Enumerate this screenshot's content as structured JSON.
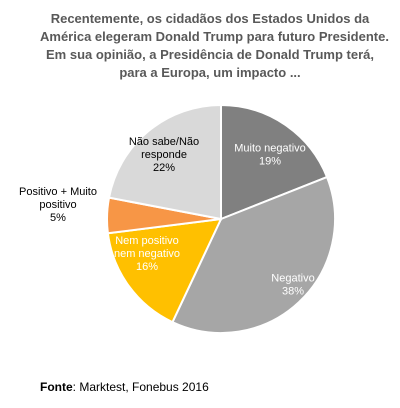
{
  "chart_data": {
    "type": "pie",
    "title_lines": [
      "Recentemente, os cidadãos dos Estados Unidos da",
      "América elegeram Donald Trump para futuro Presidente.",
      "Em sua opinião, a Presidência de Donald Trump terá,",
      "para a Europa, um impacto ..."
    ],
    "slices": [
      {
        "label_lines": [
          "Muito negativo"
        ],
        "value": 19,
        "value_label": "19%",
        "color": "#808080",
        "text_color": "#ffffff"
      },
      {
        "label_lines": [
          "Negativo"
        ],
        "value": 38,
        "value_label": "38%",
        "color": "#a6a6a6",
        "text_color": "#ffffff"
      },
      {
        "label_lines": [
          "Nem positivo",
          "nem negativo"
        ],
        "value": 16,
        "value_label": "16%",
        "color": "#ffc000",
        "text_color": "#ffffff"
      },
      {
        "label_lines": [
          "Positivo + Muito",
          "positivo"
        ],
        "value": 5,
        "value_label": "5%",
        "color": "#f79646",
        "text_color": "#000000"
      },
      {
        "label_lines": [
          "Não sabe/Não",
          "responde"
        ],
        "value": 22,
        "value_label": "22%",
        "color": "#d9d9d9",
        "text_color": "#000000"
      }
    ],
    "start_angle_deg": 0,
    "direction": "clockwise",
    "legend": "none"
  },
  "source": {
    "label": "Fonte",
    "text": ": Marktest, Fonebus 2016"
  }
}
